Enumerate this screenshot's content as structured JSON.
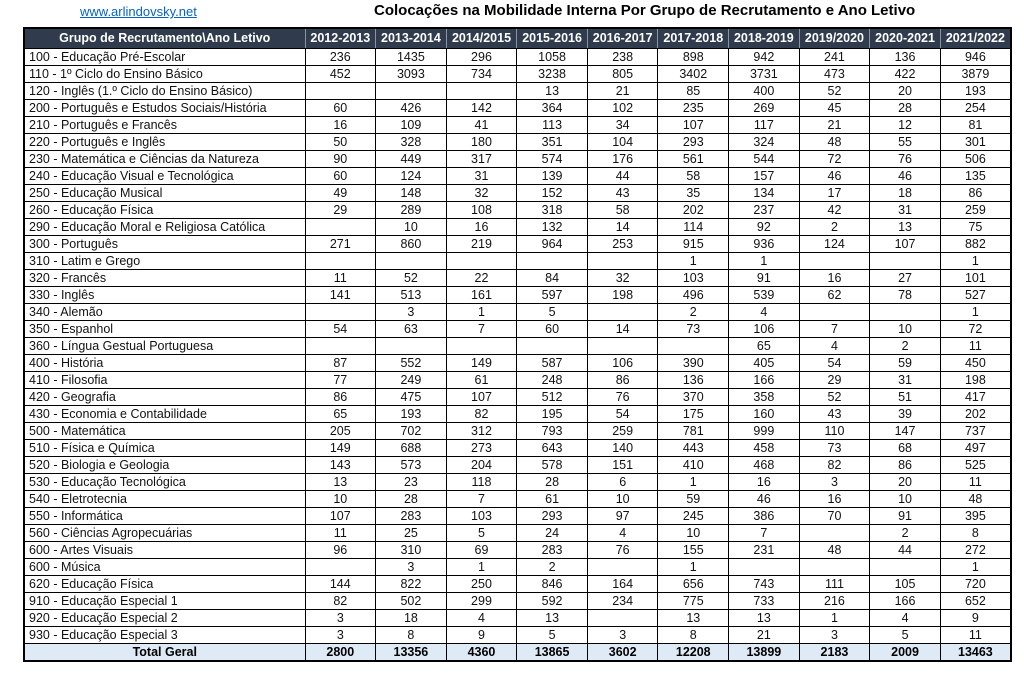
{
  "header": {
    "link": "www.arlindovsky.net",
    "title": "Colocações na Mobilidade Interna Por Grupo de Recrutamento e Ano Letivo"
  },
  "colors": {
    "header_bg": "#303C4E",
    "header_text": "#FFFFFF",
    "total_row_bg": "#DEEBF7",
    "link_blue": "#0563C1",
    "border": "#000000"
  },
  "table": {
    "corner_header": "Grupo de Recrutamento\\Ano Letivo",
    "year_columns": [
      "2012-2013",
      "2013-2014",
      "2014/2015",
      "2015-2016",
      "2016-2017",
      "2017-2018",
      "2018-2019",
      "2019/2020",
      "2020-2021",
      "2021/2022"
    ],
    "rows": [
      {
        "label": "100 - Educação Pré-Escolar",
        "values": [
          "236",
          "1435",
          "296",
          "1058",
          "238",
          "898",
          "942",
          "241",
          "136",
          "946"
        ]
      },
      {
        "label": "110 - 1º Ciclo do Ensino Básico",
        "values": [
          "452",
          "3093",
          "734",
          "3238",
          "805",
          "3402",
          "3731",
          "473",
          "422",
          "3879"
        ]
      },
      {
        "label": "120 - Inglês (1.º Ciclo do Ensino Básico)",
        "values": [
          "",
          "",
          "",
          "13",
          "21",
          "85",
          "400",
          "52",
          "20",
          "193"
        ]
      },
      {
        "label": "200 - Português e Estudos Sociais/História",
        "values": [
          "60",
          "426",
          "142",
          "364",
          "102",
          "235",
          "269",
          "45",
          "28",
          "254"
        ]
      },
      {
        "label": "210 - Português e Francês",
        "values": [
          "16",
          "109",
          "41",
          "113",
          "34",
          "107",
          "117",
          "21",
          "12",
          "81"
        ]
      },
      {
        "label": "220 - Português e Inglês",
        "values": [
          "50",
          "328",
          "180",
          "351",
          "104",
          "293",
          "324",
          "48",
          "55",
          "301"
        ]
      },
      {
        "label": "230 - Matemática e Ciências da Natureza",
        "values": [
          "90",
          "449",
          "317",
          "574",
          "176",
          "561",
          "544",
          "72",
          "76",
          "506"
        ]
      },
      {
        "label": "240 - Educação Visual e Tecnológica",
        "values": [
          "60",
          "124",
          "31",
          "139",
          "44",
          "58",
          "157",
          "46",
          "46",
          "135"
        ]
      },
      {
        "label": "250 - Educação Musical",
        "values": [
          "49",
          "148",
          "32",
          "152",
          "43",
          "35",
          "134",
          "17",
          "18",
          "86"
        ]
      },
      {
        "label": "260 - Educação Física",
        "values": [
          "29",
          "289",
          "108",
          "318",
          "58",
          "202",
          "237",
          "42",
          "31",
          "259"
        ]
      },
      {
        "label": "290 - Educação Moral e Religiosa Católica",
        "values": [
          "",
          "10",
          "16",
          "132",
          "14",
          "114",
          "92",
          "2",
          "13",
          "75"
        ]
      },
      {
        "label": "300 - Português",
        "values": [
          "271",
          "860",
          "219",
          "964",
          "253",
          "915",
          "936",
          "124",
          "107",
          "882"
        ]
      },
      {
        "label": "310 - Latim e Grego",
        "values": [
          "",
          "",
          "",
          "",
          "",
          "1",
          "1",
          "",
          "",
          "1"
        ]
      },
      {
        "label": "320 - Francês",
        "values": [
          "11",
          "52",
          "22",
          "84",
          "32",
          "103",
          "91",
          "16",
          "27",
          "101"
        ]
      },
      {
        "label": "330 - Inglês",
        "values": [
          "141",
          "513",
          "161",
          "597",
          "198",
          "496",
          "539",
          "62",
          "78",
          "527"
        ]
      },
      {
        "label": "340 - Alemão",
        "values": [
          "",
          "3",
          "1",
          "5",
          "",
          "2",
          "4",
          "",
          "",
          "1"
        ]
      },
      {
        "label": "350 - Espanhol",
        "values": [
          "54",
          "63",
          "7",
          "60",
          "14",
          "73",
          "106",
          "7",
          "10",
          "72"
        ]
      },
      {
        "label": "360 - Língua Gestual Portuguesa",
        "values": [
          "",
          "",
          "",
          "",
          "",
          "",
          "65",
          "4",
          "2",
          "11"
        ]
      },
      {
        "label": "400 - História",
        "values": [
          "87",
          "552",
          "149",
          "587",
          "106",
          "390",
          "405",
          "54",
          "59",
          "450"
        ]
      },
      {
        "label": "410 - Filosofia",
        "values": [
          "77",
          "249",
          "61",
          "248",
          "86",
          "136",
          "166",
          "29",
          "31",
          "198"
        ]
      },
      {
        "label": "420 - Geografia",
        "values": [
          "86",
          "475",
          "107",
          "512",
          "76",
          "370",
          "358",
          "52",
          "51",
          "417"
        ]
      },
      {
        "label": "430 - Economia e Contabilidade",
        "values": [
          "65",
          "193",
          "82",
          "195",
          "54",
          "175",
          "160",
          "43",
          "39",
          "202"
        ]
      },
      {
        "label": "500 - Matemática",
        "values": [
          "205",
          "702",
          "312",
          "793",
          "259",
          "781",
          "999",
          "110",
          "147",
          "737"
        ]
      },
      {
        "label": "510 - Física e Química",
        "values": [
          "149",
          "688",
          "273",
          "643",
          "140",
          "443",
          "458",
          "73",
          "68",
          "497"
        ]
      },
      {
        "label": "520 - Biologia e Geologia",
        "values": [
          "143",
          "573",
          "204",
          "578",
          "151",
          "410",
          "468",
          "82",
          "86",
          "525"
        ]
      },
      {
        "label": "530 - Educação Tecnológica",
        "values": [
          "13",
          "23",
          "118",
          "28",
          "6",
          "1",
          "16",
          "3",
          "20",
          "11"
        ]
      },
      {
        "label": "540 - Eletrotecnia",
        "values": [
          "10",
          "28",
          "7",
          "61",
          "10",
          "59",
          "46",
          "16",
          "10",
          "48"
        ]
      },
      {
        "label": "550 - Informática",
        "values": [
          "107",
          "283",
          "103",
          "293",
          "97",
          "245",
          "386",
          "70",
          "91",
          "395"
        ]
      },
      {
        "label": "560 - Ciências Agropecuárias",
        "values": [
          "11",
          "25",
          "5",
          "24",
          "4",
          "10",
          "7",
          "",
          "2",
          "8"
        ]
      },
      {
        "label": "600 - Artes Visuais",
        "values": [
          "96",
          "310",
          "69",
          "283",
          "76",
          "155",
          "231",
          "48",
          "44",
          "272"
        ]
      },
      {
        "label": "600 - Música",
        "values": [
          "",
          "3",
          "1",
          "2",
          "",
          "1",
          "",
          "",
          "",
          "1"
        ]
      },
      {
        "label": "620 - Educação Física",
        "values": [
          "144",
          "822",
          "250",
          "846",
          "164",
          "656",
          "743",
          "111",
          "105",
          "720"
        ]
      },
      {
        "label": "910 - Educação Especial 1",
        "values": [
          "82",
          "502",
          "299",
          "592",
          "234",
          "775",
          "733",
          "216",
          "166",
          "652"
        ]
      },
      {
        "label": "920 - Educação Especial 2",
        "values": [
          "3",
          "18",
          "4",
          "13",
          "",
          "13",
          "13",
          "1",
          "4",
          "9"
        ]
      },
      {
        "label": "930 - Educação Especial 3",
        "values": [
          "3",
          "8",
          "9",
          "5",
          "3",
          "8",
          "21",
          "3",
          "5",
          "11"
        ]
      }
    ],
    "total": {
      "label": "Total Geral",
      "values": [
        "2800",
        "13356",
        "4360",
        "13865",
        "3602",
        "12208",
        "13899",
        "2183",
        "2009",
        "13463"
      ]
    }
  }
}
